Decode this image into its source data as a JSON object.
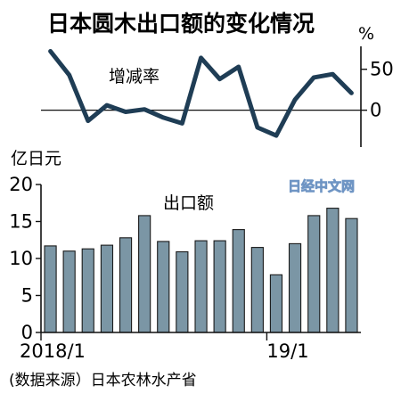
{
  "title": "日本圆木出口额的变化情况",
  "source": "(数据来源）日本农林水产省",
  "watermark": "日经中文网",
  "colors": {
    "line": "#1f3d55",
    "bar_fill": "#7b96a5",
    "bar_stroke": "#1a1a1a",
    "axis": "#111111"
  },
  "chart_data": [
    {
      "type": "line",
      "series": [
        {
          "name": "增减率",
          "values": [
            72,
            43,
            -13,
            6,
            -2,
            1,
            -9,
            -16,
            64,
            38,
            53,
            -21,
            -31,
            13,
            40,
            44,
            21
          ]
        }
      ],
      "x": [
        "2018/1",
        "2018/2",
        "2018/3",
        "2018/4",
        "2018/5",
        "2018/6",
        "2018/7",
        "2018/8",
        "2018/9",
        "2018/10",
        "2018/11",
        "2018/12",
        "2019/1",
        "2019/2",
        "2019/3",
        "2019/4",
        "2019/5"
      ],
      "unit": "%",
      "yticks": [
        0,
        50
      ],
      "ylim": [
        -45,
        78
      ]
    },
    {
      "type": "bar",
      "categories": [
        "2018/1",
        "2018/2",
        "2018/3",
        "2018/4",
        "2018/5",
        "2018/6",
        "2018/7",
        "2018/8",
        "2018/9",
        "2018/10",
        "2018/11",
        "2018/12",
        "2019/1",
        "2019/2",
        "2019/3",
        "2019/4",
        "2019/5"
      ],
      "series": [
        {
          "name": "出口额",
          "values": [
            11.7,
            11.0,
            11.3,
            11.8,
            12.8,
            15.8,
            12.3,
            10.9,
            12.4,
            12.4,
            13.9,
            11.5,
            7.8,
            12.0,
            15.8,
            16.8,
            15.4
          ]
        }
      ],
      "unit": "亿日元",
      "yticks": [
        0,
        5,
        10,
        15,
        20
      ],
      "ylim": [
        0,
        20
      ],
      "xtick_labels": [
        {
          "index": 0,
          "label": "2018/1"
        },
        {
          "index": 12,
          "label": "19/1"
        }
      ]
    }
  ]
}
